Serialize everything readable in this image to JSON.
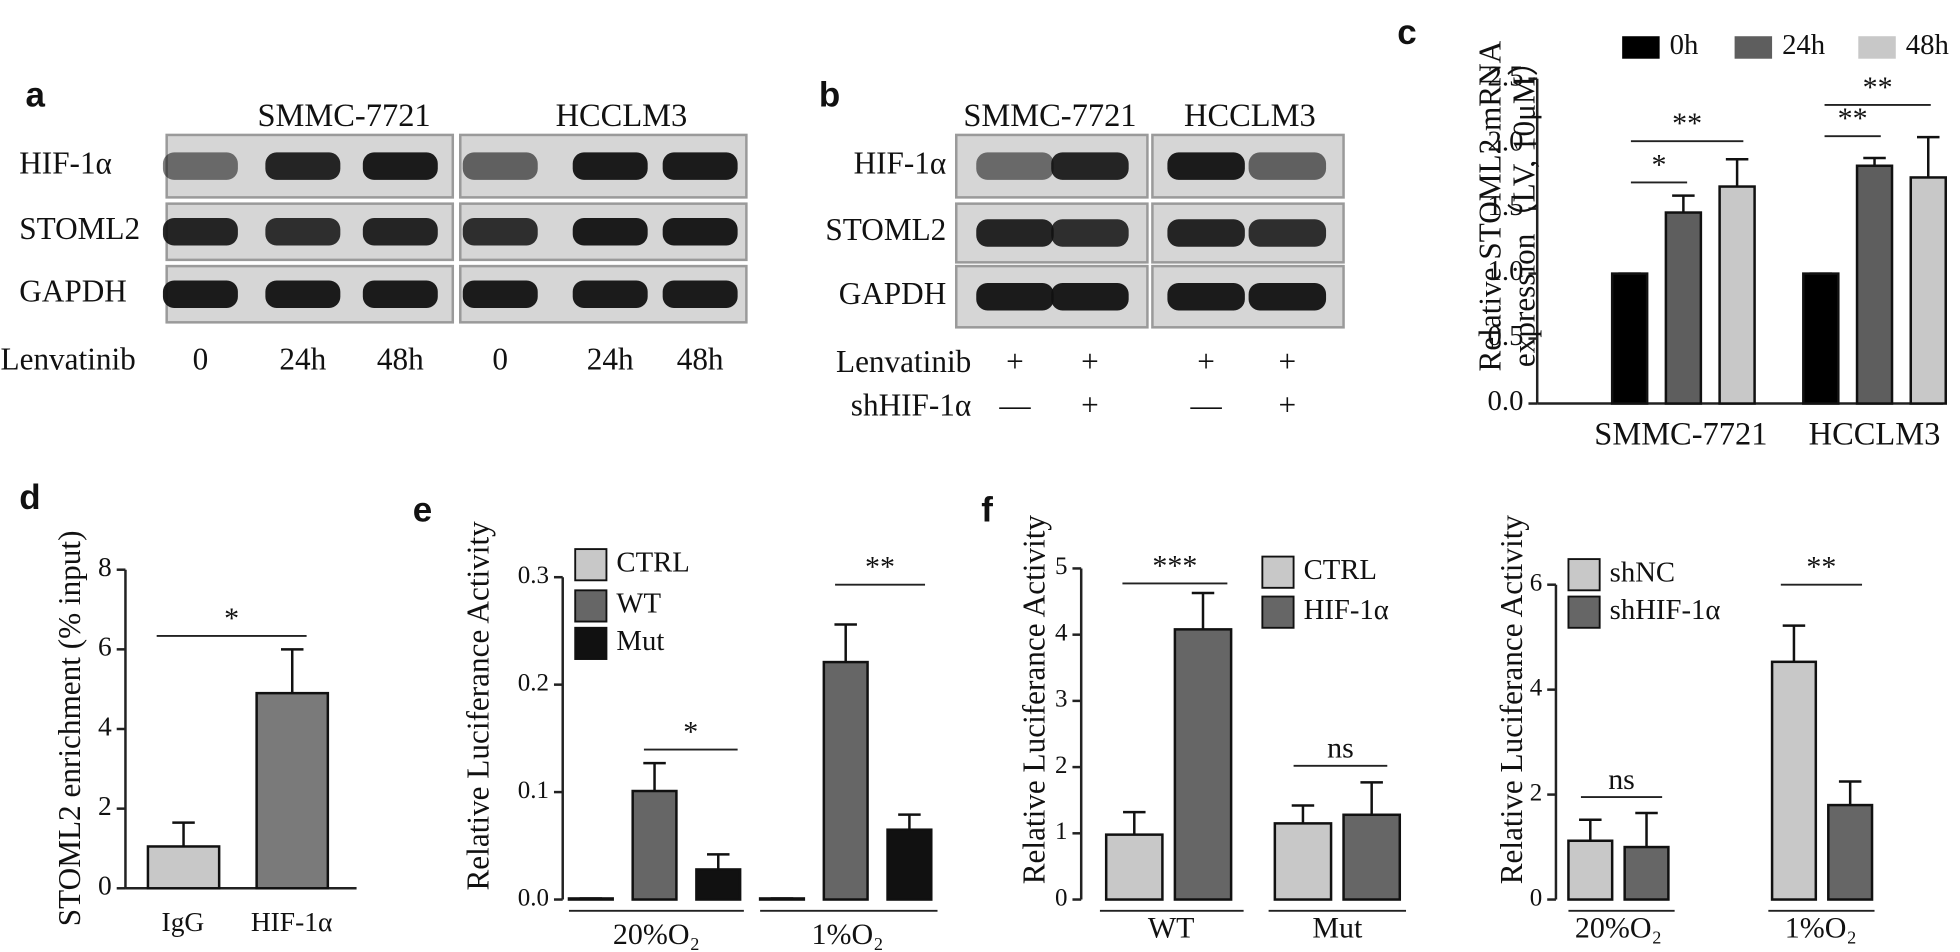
{
  "panel_labels": [
    "a",
    "b",
    "c",
    "d",
    "e",
    "f"
  ],
  "blots": [
    {
      "cell_lines": [
        "SMMC-7721",
        "HCCLM3"
      ],
      "rows": [
        "HIF-1α",
        "STOML2",
        "GAPDH"
      ],
      "treatments": [
        {
          "name": "Lenvatinib",
          "lanes": [
            "0",
            "24h",
            "48h",
            "0",
            "24h",
            "48h"
          ]
        }
      ]
    },
    {
      "cell_lines": [
        "SMMC-7721",
        "HCCLM3"
      ],
      "rows": [
        "HIF-1α",
        "STOML2",
        "GAPDH"
      ],
      "treatments": [
        {
          "name": "Lenvatinib",
          "lanes": [
            "+",
            "+",
            "+",
            "+"
          ]
        },
        {
          "name": "shHIF-1α",
          "lanes": [
            "—",
            "+",
            "—",
            "+"
          ]
        }
      ]
    }
  ],
  "chart_data": [
    {
      "type": "bar",
      "ylabel": [
        "Relative STOML2 mRNA",
        "expression（LV, 10μM）"
      ],
      "categories": [
        "SMMC-7721",
        "HCCLM3"
      ],
      "series": [
        {
          "name": "0h",
          "color": "#000000",
          "values": [
            1.0,
            1.0
          ],
          "errors": [
            0,
            0
          ]
        },
        {
          "name": "24h",
          "color": "#5e5e5e",
          "values": [
            1.47,
            1.83
          ],
          "errors": [
            0.13,
            0.06
          ]
        },
        {
          "name": "48h",
          "color": "#c8c8c8",
          "values": [
            1.67,
            1.74
          ],
          "errors": [
            0.21,
            0.31
          ]
        }
      ],
      "ylim": [
        0,
        2.5
      ],
      "yticks": [
        {
          "value": 0,
          "label": "0.0"
        },
        0.5,
        {
          "value": 1,
          "label": "1.0"
        },
        1.5,
        {
          "value": 2,
          "label": "2.0"
        },
        2.5
      ],
      "legend": "top",
      "annotations": [
        {
          "text": "*"
        },
        {
          "text": "**"
        },
        {
          "text": "**"
        },
        {
          "text": "**"
        }
      ]
    },
    {
      "type": "bar",
      "ylabel": [
        "STOML2 enrichment (% input)"
      ],
      "categories": [
        "IgG",
        "HIF-1α"
      ],
      "values": [
        1.05,
        4.9
      ],
      "errors": [
        0.6,
        1.1
      ],
      "colors": [
        "#c8c8c8",
        "#7a7a7a"
      ],
      "ylim": [
        0,
        8
      ],
      "yticks": [
        0,
        2,
        4,
        6,
        8
      ],
      "annotations": [
        {
          "text": "*"
        }
      ]
    },
    {
      "type": "bar",
      "ylabel": [
        "Relative Luciferance Activity"
      ],
      "categories": [
        "20%O₂",
        "1%O₂"
      ],
      "series": [
        {
          "name": "CTRL",
          "color": "#c8c8c8",
          "values": [
            0.001,
            0.001
          ],
          "errors": [
            0,
            0
          ]
        },
        {
          "name": "WT",
          "color": "#666666",
          "values": [
            0.101,
            0.221
          ],
          "errors": [
            0.026,
            0.035
          ]
        },
        {
          "name": "Mut",
          "color": "#111111",
          "values": [
            0.028,
            0.065
          ],
          "errors": [
            0.014,
            0.014
          ]
        }
      ],
      "ylim": [
        0,
        0.3
      ],
      "yticks": [
        {
          "value": 0,
          "label": "0.0"
        },
        0.1,
        0.2,
        0.3
      ],
      "legend": "upper left",
      "annotations": [
        {
          "text": "*"
        },
        {
          "text": "**"
        }
      ]
    },
    {
      "type": "bar",
      "ylabel": [
        "Relative Luciferance Activity"
      ],
      "categories": [
        "WT",
        "Mut"
      ],
      "series": [
        {
          "name": "CTRL",
          "color": "#c8c8c8",
          "values": [
            0.98,
            1.15
          ],
          "errors": [
            0.34,
            0.27
          ]
        },
        {
          "name": "HIF-1α",
          "color": "#666666",
          "values": [
            4.08,
            1.28
          ],
          "errors": [
            0.55,
            0.49
          ]
        }
      ],
      "ylim": [
        0,
        5
      ],
      "yticks": [
        0,
        1,
        2,
        3,
        4,
        5
      ],
      "legend": "upper left",
      "annotations": [
        {
          "text": "***"
        },
        {
          "text": "ns"
        }
      ]
    },
    {
      "type": "bar",
      "ylabel": [
        "Relative Luciferance Activity"
      ],
      "categories": [
        "20%O₂",
        "1%O₂"
      ],
      "series": [
        {
          "name": "shNC",
          "color": "#c8c8c8",
          "values": [
            1.12,
            4.53
          ],
          "errors": [
            0.4,
            0.69
          ]
        },
        {
          "name": "shHIF-1α",
          "color": "#666666",
          "values": [
            1.0,
            1.8
          ],
          "errors": [
            0.65,
            0.45
          ]
        }
      ],
      "ylim": [
        0,
        6
      ],
      "yticks": [
        0,
        2,
        4,
        6
      ],
      "legend": "upper left",
      "annotations": [
        {
          "text": "ns"
        },
        {
          "text": "**"
        }
      ]
    }
  ]
}
